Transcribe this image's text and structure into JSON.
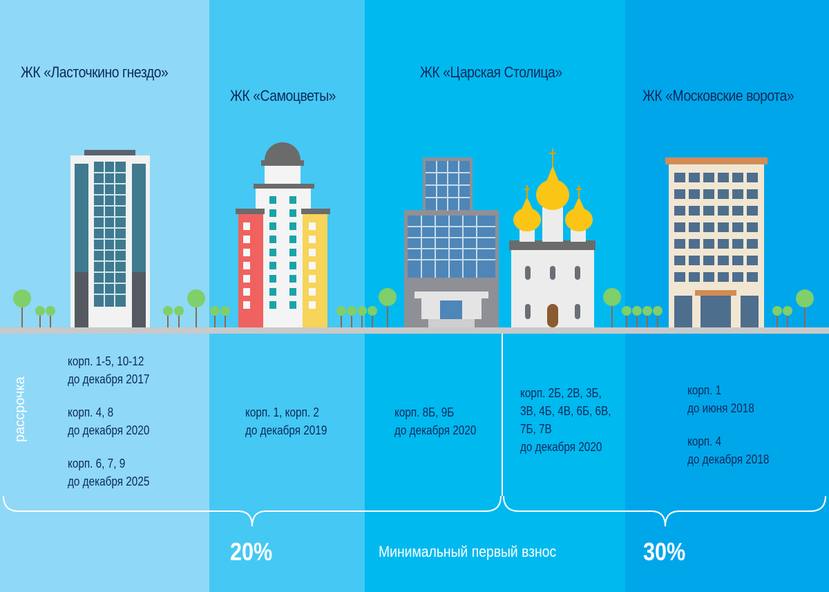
{
  "colors": {
    "col1": "#8fd8f6",
    "col2": "#45c8f4",
    "col3": "#00b9ef",
    "col4": "#00a6ea",
    "text": "#0d2a5a"
  },
  "complexes": [
    {
      "title": "ЖК «Ласточкино гнездо»",
      "terms": [
        [
          "корп. 1-5, 10-12",
          "до декабря 2017"
        ],
        [
          "корп. 4, 8",
          "до декабря 2020"
        ],
        [
          "корп. 6, 7, 9",
          "до декабря 2025"
        ]
      ]
    },
    {
      "title": "ЖК «Самоцветы»",
      "terms": [
        [
          "корп. 1, корп. 2",
          "до декабря 2019"
        ]
      ]
    },
    {
      "title": "ЖК «Царская Столица»",
      "terms": [
        [
          "корп. 8Б, 9Б",
          "до декабря 2020"
        ],
        [
          "корп. 2Б, 2В, 3Б,",
          "3В, 4Б, 4В, 6Б, 6В,",
          "7Б, 7В",
          "до декабря 2020"
        ]
      ]
    },
    {
      "title": "ЖК «Московские ворота»",
      "terms": [
        [
          "корп. 1",
          "до июня 2018"
        ],
        [
          "корп. 4",
          "до декабря 2018"
        ]
      ]
    }
  ],
  "installment_label": "рассрочка",
  "down_payment": {
    "label": "Минимальный первый взнос",
    "left": "20%",
    "right": "30%"
  }
}
